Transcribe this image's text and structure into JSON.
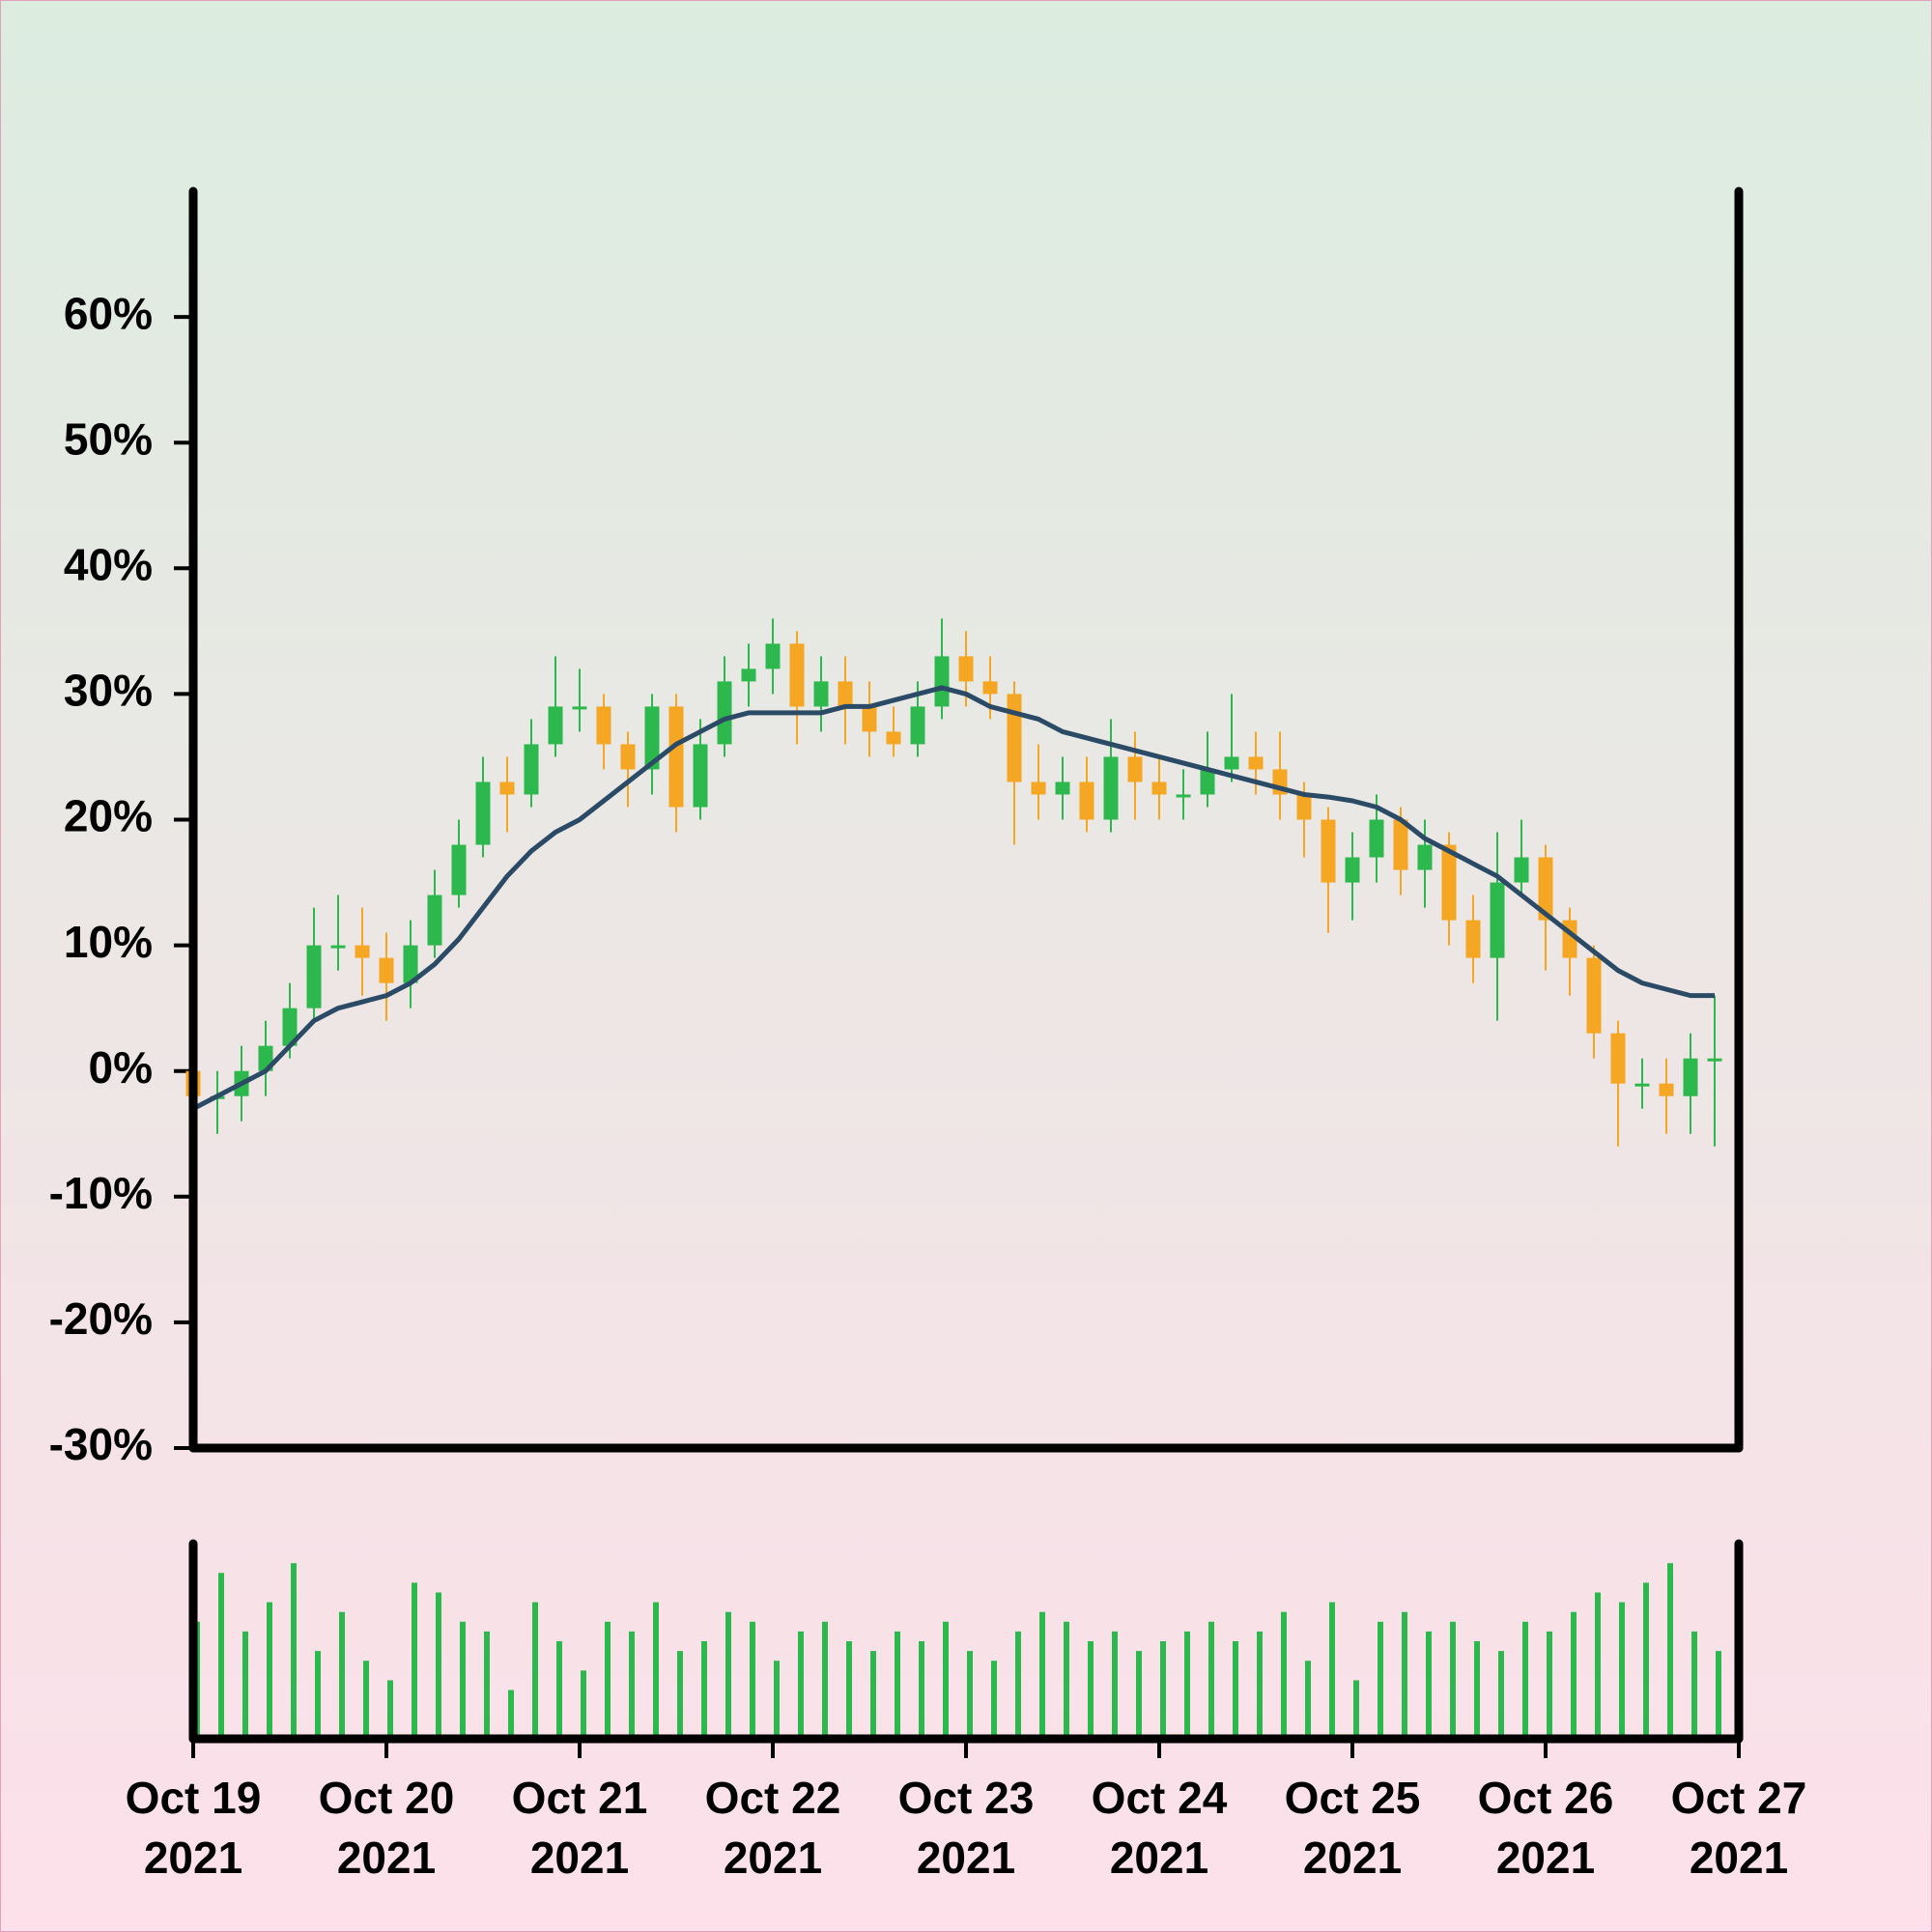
{
  "chart_data": {
    "type": "candlestick",
    "x": [
      "2021-10-19T00:00",
      "2021-10-19T03:00",
      "2021-10-19T06:00",
      "2021-10-19T09:00",
      "2021-10-19T12:00",
      "2021-10-19T15:00",
      "2021-10-19T18:00",
      "2021-10-19T21:00",
      "2021-10-20T00:00",
      "2021-10-20T03:00",
      "2021-10-20T06:00",
      "2021-10-20T09:00",
      "2021-10-20T12:00",
      "2021-10-20T15:00",
      "2021-10-20T18:00",
      "2021-10-20T21:00",
      "2021-10-21T00:00",
      "2021-10-21T03:00",
      "2021-10-21T06:00",
      "2021-10-21T09:00",
      "2021-10-21T12:00",
      "2021-10-21T15:00",
      "2021-10-21T18:00",
      "2021-10-21T21:00",
      "2021-10-22T00:00",
      "2021-10-22T03:00",
      "2021-10-22T06:00",
      "2021-10-22T09:00",
      "2021-10-22T12:00",
      "2021-10-22T15:00",
      "2021-10-22T18:00",
      "2021-10-22T21:00",
      "2021-10-23T00:00",
      "2021-10-23T03:00",
      "2021-10-23T06:00",
      "2021-10-23T09:00",
      "2021-10-23T12:00",
      "2021-10-23T15:00",
      "2021-10-23T18:00",
      "2021-10-23T21:00",
      "2021-10-24T00:00",
      "2021-10-24T03:00",
      "2021-10-24T06:00",
      "2021-10-24T09:00",
      "2021-10-24T12:00",
      "2021-10-24T15:00",
      "2021-10-24T18:00",
      "2021-10-24T21:00",
      "2021-10-25T00:00",
      "2021-10-25T03:00",
      "2021-10-25T06:00",
      "2021-10-25T09:00",
      "2021-10-25T12:00",
      "2021-10-25T15:00",
      "2021-10-25T18:00",
      "2021-10-25T21:00",
      "2021-10-26T00:00",
      "2021-10-26T03:00",
      "2021-10-26T06:00",
      "2021-10-26T09:00",
      "2021-10-26T12:00",
      "2021-10-26T15:00",
      "2021-10-26T18:00",
      "2021-10-26T21:00"
    ],
    "open": [
      0,
      -2,
      -2,
      0,
      2,
      5,
      10,
      10,
      9,
      7,
      10,
      14,
      18,
      23,
      22,
      26,
      29,
      29,
      26,
      24,
      29,
      21,
      26,
      31,
      32,
      34,
      29,
      31,
      29,
      27,
      26,
      29,
      33,
      31,
      30,
      23,
      22,
      23,
      20,
      25,
      23,
      22,
      22,
      24,
      25,
      24,
      22,
      20,
      15,
      17,
      20,
      16,
      18,
      12,
      9,
      15,
      17,
      12,
      9,
      3,
      -1,
      -1,
      -2,
      1
    ],
    "high": [
      2,
      0,
      2,
      4,
      7,
      13,
      14,
      13,
      11,
      12,
      16,
      20,
      25,
      25,
      28,
      33,
      32,
      30,
      27,
      30,
      30,
      28,
      33,
      34,
      36,
      35,
      33,
      33,
      31,
      29,
      31,
      36,
      35,
      33,
      31,
      26,
      25,
      25,
      28,
      27,
      25,
      24,
      27,
      30,
      27,
      27,
      23,
      21,
      19,
      22,
      21,
      20,
      19,
      14,
      19,
      20,
      18,
      13,
      10,
      4,
      1,
      1,
      3,
      6
    ],
    "low": [
      -4,
      -5,
      -4,
      -2,
      1,
      4,
      8,
      6,
      4,
      5,
      9,
      13,
      17,
      19,
      21,
      25,
      27,
      24,
      21,
      22,
      19,
      20,
      25,
      29,
      30,
      26,
      27,
      26,
      25,
      25,
      25,
      28,
      29,
      28,
      18,
      20,
      20,
      19,
      19,
      20,
      20,
      20,
      21,
      23,
      22,
      20,
      17,
      11,
      12,
      15,
      14,
      13,
      10,
      7,
      4,
      14,
      8,
      6,
      1,
      -6,
      -3,
      -5,
      -5,
      -6
    ],
    "close": [
      -2,
      -2,
      0,
      2,
      5,
      10,
      10,
      9,
      7,
      10,
      14,
      18,
      23,
      22,
      26,
      29,
      29,
      26,
      24,
      29,
      21,
      26,
      31,
      32,
      34,
      29,
      31,
      29,
      27,
      26,
      29,
      33,
      31,
      30,
      23,
      22,
      23,
      20,
      25,
      23,
      22,
      22,
      24,
      25,
      24,
      22,
      20,
      15,
      17,
      20,
      16,
      18,
      12,
      9,
      15,
      17,
      12,
      9,
      3,
      -1,
      -1,
      -2,
      1,
      1
    ],
    "up_color": "#2db84d",
    "down_color": "#f5a623",
    "moving_average": {
      "color": "#2b4a66",
      "values": [
        -3,
        -2,
        -1,
        0,
        2,
        4,
        5,
        5.5,
        6,
        7,
        8.5,
        10.5,
        13,
        15.5,
        17.5,
        19,
        20,
        21.5,
        23,
        24.5,
        26,
        27,
        28,
        28.5,
        28.5,
        28.5,
        28.5,
        29,
        29,
        29.5,
        30,
        30.5,
        30,
        29,
        28.5,
        28,
        27,
        26.5,
        26,
        25.5,
        25,
        24.5,
        24,
        23.5,
        23,
        22.5,
        22,
        21.8,
        21.5,
        21,
        20,
        18.5,
        17.5,
        16.5,
        15.5,
        14,
        12.5,
        11,
        9.5,
        8,
        7,
        6.5,
        6,
        6
      ]
    },
    "volume": {
      "color": "#2db84d",
      "ylim": [
        0,
        100
      ],
      "values": [
        60,
        85,
        55,
        70,
        90,
        45,
        65,
        40,
        30,
        80,
        75,
        60,
        55,
        25,
        70,
        50,
        35,
        60,
        55,
        70,
        45,
        50,
        65,
        60,
        40,
        55,
        60,
        50,
        45,
        55,
        50,
        60,
        45,
        40,
        55,
        65,
        60,
        50,
        55,
        45,
        50,
        55,
        60,
        50,
        55,
        65,
        40,
        70,
        30,
        60,
        65,
        55,
        60,
        50,
        45,
        60,
        55,
        65,
        75,
        70,
        80,
        90,
        55,
        45
      ]
    },
    "ylim": [
      -30,
      70
    ],
    "yticks": [
      {
        "value": -30,
        "label": "-30%"
      },
      {
        "value": -20,
        "label": "-20%"
      },
      {
        "value": -10,
        "label": "-10%"
      },
      {
        "value": 0,
        "label": "0%"
      },
      {
        "value": 10,
        "label": "10%"
      },
      {
        "value": 20,
        "label": "20%"
      },
      {
        "value": 30,
        "label": "30%"
      },
      {
        "value": 40,
        "label": "40%"
      },
      {
        "value": 50,
        "label": "50%"
      },
      {
        "value": 60,
        "label": "60%"
      }
    ],
    "xlim": [
      "2021-10-19T00:00",
      "2021-10-27T00:00"
    ],
    "xticks": [
      {
        "value": "2021-10-19T00:00",
        "label": [
          "Oct 19",
          "2021"
        ]
      },
      {
        "value": "2021-10-20T00:00",
        "label": [
          "Oct 20",
          "2021"
        ]
      },
      {
        "value": "2021-10-21T00:00",
        "label": [
          "Oct 21",
          "2021"
        ]
      },
      {
        "value": "2021-10-22T00:00",
        "label": [
          "Oct 22",
          "2021"
        ]
      },
      {
        "value": "2021-10-23T00:00",
        "label": [
          "Oct 23",
          "2021"
        ]
      },
      {
        "value": "2021-10-24T00:00",
        "label": [
          "Oct 24",
          "2021"
        ]
      },
      {
        "value": "2021-10-25T00:00",
        "label": [
          "Oct 25",
          "2021"
        ]
      },
      {
        "value": "2021-10-26T00:00",
        "label": [
          "Oct 26",
          "2021"
        ]
      },
      {
        "value": "2021-10-27T00:00",
        "label": [
          "Oct 27",
          "2021"
        ]
      }
    ]
  }
}
